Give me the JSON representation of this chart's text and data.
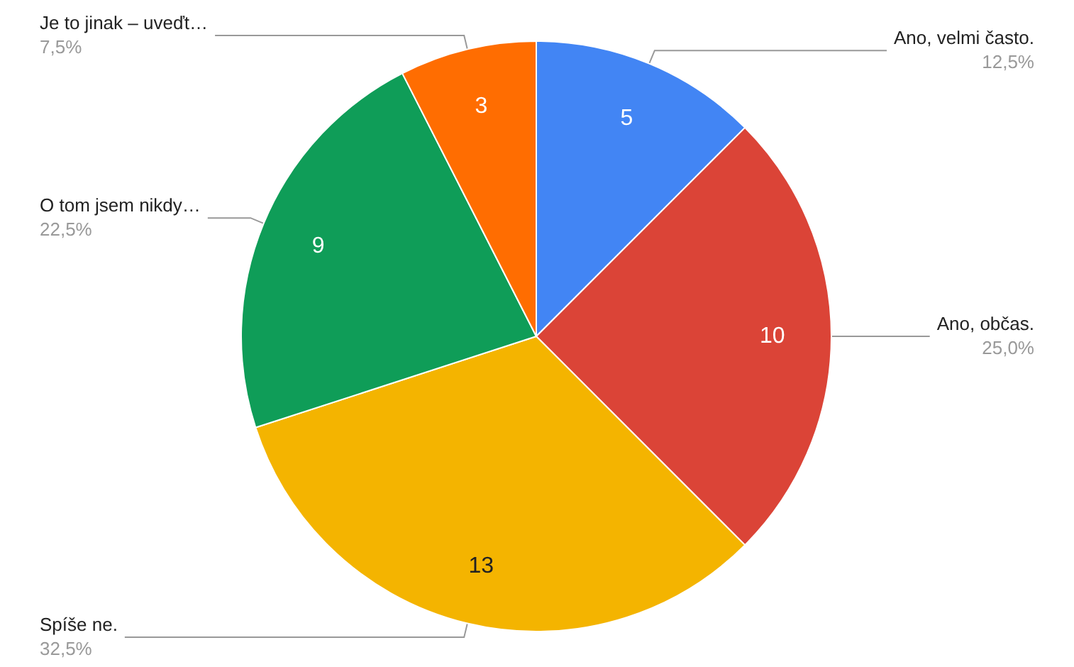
{
  "chart_data": {
    "type": "pie",
    "categories": [
      "Ano, velmi často.",
      "Ano, občas.",
      "Spíše ne.",
      "O tom jsem nikdy…",
      "Je to jinak – uveďt…"
    ],
    "values": [
      12.5,
      25,
      32.5,
      22.5,
      7.5
    ],
    "colors": [
      "#4285f4",
      "#db4437",
      "#f4b400",
      "#0f9d58",
      "#ff6d01"
    ],
    "value_labels": [
      "12,5%",
      "25,0%",
      "32,5%",
      "22,5%",
      "7,5%"
    ],
    "annotations": [
      {
        "text": "5",
        "x": "Ano, velmi často."
      },
      {
        "text": "10",
        "x": "Ano, občas."
      },
      {
        "text": "13",
        "x": "Spíše ne."
      },
      {
        "text": "9",
        "x": "O tom jsem nikdy…"
      },
      {
        "text": "3",
        "x": "Je to jinak – uveďt…"
      }
    ]
  }
}
